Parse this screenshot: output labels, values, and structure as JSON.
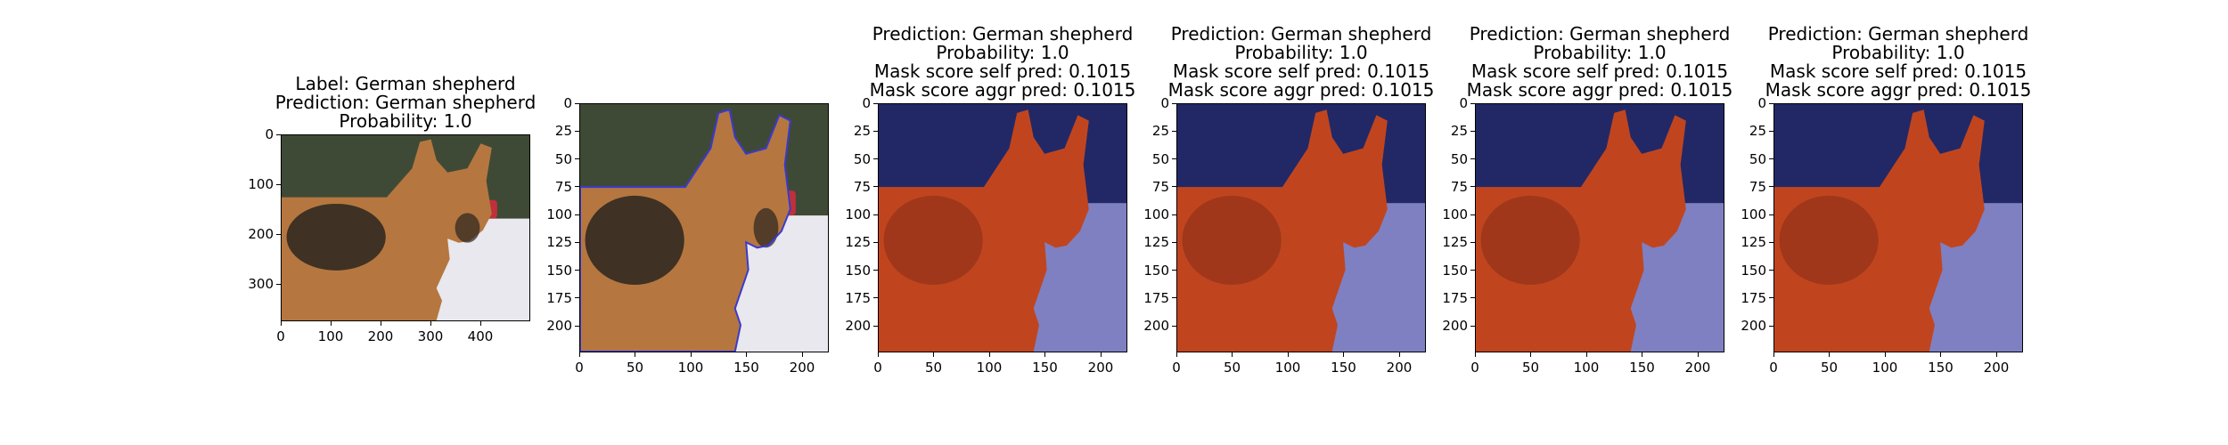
{
  "panels": [
    {
      "title_lines": [
        "Label: German shepherd",
        "Prediction: German shepherd",
        "Probability: 1.0"
      ],
      "image": "original-photo",
      "x_ticks": [
        "0",
        "100",
        "200",
        "300",
        "400"
      ],
      "y_ticks": [
        "0",
        "100",
        "200",
        "300"
      ]
    },
    {
      "title_lines": [],
      "image": "photo-with-blue-contours",
      "x_ticks": [
        "0",
        "50",
        "100",
        "150",
        "200"
      ],
      "y_ticks": [
        "0",
        "25",
        "50",
        "75",
        "100",
        "125",
        "150",
        "175",
        "200"
      ]
    },
    {
      "title_lines": [
        "Prediction: German shepherd",
        "Probability: 1.0",
        "Mask score self pred: 0.1015",
        "Mask score aggr pred: 0.1015"
      ],
      "image": "mask-overlay",
      "x_ticks": [
        "0",
        "50",
        "100",
        "150",
        "200"
      ],
      "y_ticks": [
        "0",
        "25",
        "50",
        "75",
        "100",
        "125",
        "150",
        "175",
        "200"
      ]
    },
    {
      "title_lines": [
        "Prediction: German shepherd",
        "Probability: 1.0",
        "Mask score self pred: 0.1015",
        "Mask score aggr pred: 0.1015"
      ],
      "image": "mask-overlay",
      "x_ticks": [
        "0",
        "50",
        "100",
        "150",
        "200"
      ],
      "y_ticks": [
        "0",
        "25",
        "50",
        "75",
        "100",
        "125",
        "150",
        "175",
        "200"
      ]
    },
    {
      "title_lines": [
        "Prediction: German shepherd",
        "Probability: 1.0",
        "Mask score self pred: 0.1015",
        "Mask score aggr pred: 0.1015"
      ],
      "image": "mask-overlay",
      "x_ticks": [
        "0",
        "50",
        "100",
        "150",
        "200"
      ],
      "y_ticks": [
        "0",
        "25",
        "50",
        "75",
        "100",
        "125",
        "150",
        "175",
        "200"
      ]
    },
    {
      "title_lines": [
        "Prediction: German shepherd",
        "Probability: 1.0",
        "Mask score self pred: 0.1015",
        "Mask score aggr pred: 0.1015"
      ],
      "image": "mask-overlay",
      "x_ticks": [
        "0",
        "50",
        "100",
        "150",
        "200"
      ],
      "y_ticks": [
        "0",
        "25",
        "50",
        "75",
        "100",
        "125",
        "150",
        "175",
        "200"
      ]
    }
  ],
  "colors": {
    "mask_dog": "#c0451f",
    "mask_background": "#7f80c2",
    "mask_dark_background": "#222866",
    "contour": "#3a3ad0",
    "dog_tan": "#b5773f",
    "dog_black": "#2a2420",
    "snow": "#e8e8ee",
    "trees": "#3f4a36"
  }
}
